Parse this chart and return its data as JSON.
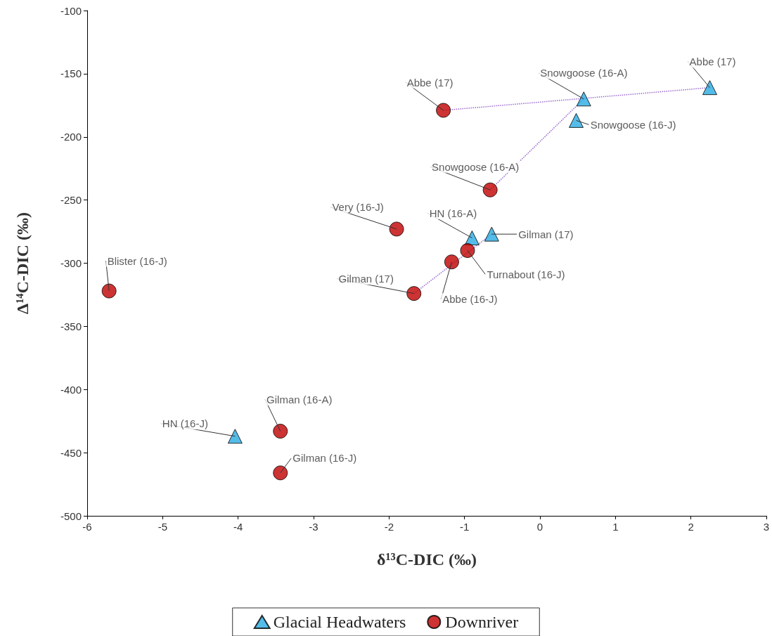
{
  "chart_data": {
    "type": "scatter",
    "xlabel": "δ¹³C-DIC (‰)",
    "ylabel": "Δ¹⁴C-DIC (‰)",
    "xlim": [
      -6,
      3
    ],
    "xticks": [
      -6,
      -5,
      -4,
      -3,
      -2,
      -1,
      0,
      1,
      2,
      3
    ],
    "ylim": [
      -500,
      -100
    ],
    "yticks": [
      -500,
      -450,
      -400,
      -350,
      -300,
      -250,
      -200,
      -150,
      -100
    ],
    "grid": false,
    "legend": "bottom",
    "series": [
      {
        "name": "Glacial Headwaters",
        "type": "scatter",
        "marker": "triangle",
        "color": "#29abe2",
        "x": [
          2.25,
          0.58,
          0.48,
          -0.9,
          -0.64,
          -4.04
        ],
        "values": [
          -161,
          -170,
          -187,
          -280,
          -277,
          -437
        ]
      },
      {
        "name": "Downriver",
        "type": "scatter",
        "marker": "circle",
        "color": "#c00000",
        "x": [
          -1.28,
          -0.66,
          -1.9,
          -0.96,
          -1.17,
          -1.67,
          -5.71,
          -3.44,
          -3.44
        ],
        "values": [
          -179,
          -242,
          -273,
          -290,
          -299,
          -324,
          -322,
          -433,
          -466
        ]
      },
      {
        "type": "line",
        "marker": "none",
        "line_style": "dotted",
        "color": "#9966cc",
        "x": [
          -1.28,
          2.25
        ],
        "values": [
          -179,
          -161
        ]
      },
      {
        "type": "line",
        "marker": "none",
        "line_style": "dotted",
        "color": "#9966cc",
        "x": [
          -0.66,
          0.58
        ],
        "values": [
          -242,
          -170
        ]
      },
      {
        "type": "line",
        "marker": "none",
        "line_style": "dotted",
        "color": "#9966cc",
        "x": [
          -1.67,
          -0.64
        ],
        "values": [
          -324,
          -277
        ]
      }
    ],
    "annotations": [
      {
        "text": "Abbe (17)",
        "x": 2.25,
        "y": -161
      },
      {
        "text": "Snowgoose (16-A)",
        "x": 0.58,
        "y": -170
      },
      {
        "text": "Snowgoose (16-J)",
        "x": 0.48,
        "y": -187
      },
      {
        "text": "HN (16-A)",
        "x": -0.9,
        "y": -280
      },
      {
        "text": "Gilman (17)",
        "x": -0.64,
        "y": -277
      },
      {
        "text": "HN (16-J)",
        "x": -4.04,
        "y": -437
      },
      {
        "text": "Abbe (17)",
        "x": -1.28,
        "y": -179
      },
      {
        "text": "Snowgoose (16-A)",
        "x": -0.66,
        "y": -242
      },
      {
        "text": "Very (16-J)",
        "x": -1.9,
        "y": -273
      },
      {
        "text": "Turnabout (16-J)",
        "x": -0.96,
        "y": -290
      },
      {
        "text": "Abbe (16-J)",
        "x": -1.17,
        "y": -299
      },
      {
        "text": "Gilman (17)",
        "x": -1.67,
        "y": -324
      },
      {
        "text": "Blister (16-J)",
        "x": -5.71,
        "y": -322
      },
      {
        "text": "Gilman (16-A)",
        "x": -3.44,
        "y": -433
      },
      {
        "text": "Gilman (16-J)",
        "x": -3.44,
        "y": -466
      }
    ]
  }
}
